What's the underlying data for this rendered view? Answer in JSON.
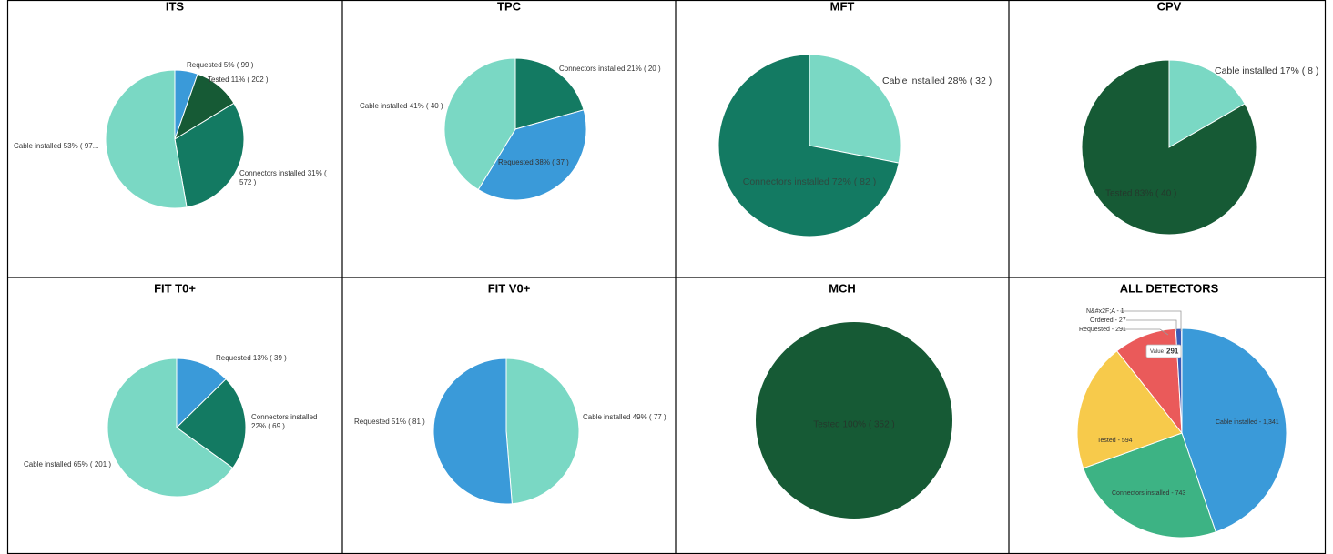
{
  "chart_data": [
    {
      "type": "pie",
      "title": "ITS",
      "labels": [
        [
          "Requested 5% ( 99 )"
        ],
        [
          "Tested 11% ( 202 )"
        ],
        [
          "Connectors installed 31% (",
          "572 )"
        ],
        [
          "Cable installed 53% ( 97..."
        ]
      ],
      "values": [
        99,
        202,
        572,
        975
      ],
      "colors": [
        "#3a9ad9",
        "#165a35",
        "#137a62",
        "#7ad8c4"
      ]
    },
    {
      "type": "pie",
      "title": "TPC",
      "labels": [
        [
          "Connectors installed 21% ( 20 )"
        ],
        [
          "Requested 38% ( 37 )"
        ],
        [
          "Cable installed 41% ( 40 )"
        ]
      ],
      "values": [
        20,
        37,
        40
      ],
      "colors": [
        "#137a62",
        "#3a9ad9",
        "#7ad8c4"
      ]
    },
    {
      "type": "pie",
      "title": "MFT",
      "labels": [
        [
          "Cable installed 28% ( 32 )"
        ],
        [
          "Connectors installed 72% ( 82 )"
        ]
      ],
      "values": [
        32,
        82
      ],
      "colors": [
        "#7ad8c4",
        "#137a62"
      ]
    },
    {
      "type": "pie",
      "title": "CPV",
      "labels": [
        [
          "Cable installed 17% ( 8 )"
        ],
        [
          "Tested 83% ( 40 )"
        ]
      ],
      "values": [
        8,
        40
      ],
      "colors": [
        "#7ad8c4",
        "#165a35"
      ]
    },
    {
      "type": "pie",
      "title": "FIT T0+",
      "labels": [
        [
          "Requested 13% ( 39 )"
        ],
        [
          "Connectors installed",
          "22% ( 69 )"
        ],
        [
          "Cable installed 65% ( 201 )"
        ]
      ],
      "values": [
        39,
        69,
        201
      ],
      "colors": [
        "#3a9ad9",
        "#137a62",
        "#7ad8c4"
      ]
    },
    {
      "type": "pie",
      "title": "FIT V0+",
      "labels": [
        [
          "Cable installed 49% ( 77 )"
        ],
        [
          "Requested 51% ( 81 )"
        ]
      ],
      "values": [
        77,
        81
      ],
      "colors": [
        "#7ad8c4",
        "#3a9ad9"
      ]
    },
    {
      "type": "pie",
      "title": "MCH",
      "labels": [
        [
          "Tested 100% ( 352 )"
        ]
      ],
      "values": [
        352
      ],
      "colors": [
        "#165a35"
      ]
    },
    {
      "type": "pie",
      "title": "ALL DETECTORS",
      "labels": [
        [
          "Cable installed - 1,341"
        ],
        [
          "Connectors installed - 743"
        ],
        [
          "Tested - 594"
        ],
        [
          "Requested - 291"
        ],
        [
          "Ordered - 27"
        ],
        [
          "N&#x2F;A - 1"
        ]
      ],
      "values": [
        1341,
        743,
        594,
        291,
        27,
        1
      ],
      "colors": [
        "#3a9ad9",
        "#3db384",
        "#f7ca4b",
        "#ea5a5a",
        "#3a5bb5",
        "#7b4fa0"
      ],
      "tooltip": {
        "label": "Value",
        "value": 291
      }
    }
  ]
}
